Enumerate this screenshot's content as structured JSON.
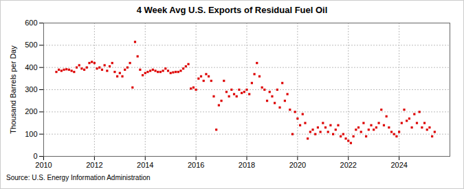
{
  "chart_data": {
    "type": "scatter",
    "title": "4 Week Avg U.S. Exports of Residual Fuel Oil",
    "y_label": "Thousand Barrels per Day",
    "caption": "Source: U.S. Energy Information Administration",
    "color": "#dd0000",
    "marker": "square",
    "grid": true,
    "xlim": [
      2010,
      2026
    ],
    "xticks": [
      2010,
      2012,
      2014,
      2016,
      2018,
      2020,
      2022,
      2024
    ],
    "ylim": [
      0,
      600
    ],
    "yticks": [
      0,
      100,
      200,
      300,
      400,
      500,
      600
    ],
    "x": [
      2010.5,
      2010.6,
      2010.7,
      2010.8,
      2010.9,
      2011.0,
      2011.1,
      2011.2,
      2011.3,
      2011.4,
      2011.5,
      2011.6,
      2011.7,
      2011.8,
      2011.9,
      2012.0,
      2012.1,
      2012.2,
      2012.3,
      2012.4,
      2012.5,
      2012.6,
      2012.7,
      2012.8,
      2012.9,
      2013.0,
      2013.1,
      2013.2,
      2013.3,
      2013.4,
      2013.5,
      2013.6,
      2013.7,
      2013.8,
      2013.9,
      2014.0,
      2014.1,
      2014.2,
      2014.3,
      2014.4,
      2014.5,
      2014.6,
      2014.7,
      2014.8,
      2014.9,
      2015.0,
      2015.1,
      2015.2,
      2015.3,
      2015.4,
      2015.5,
      2015.6,
      2015.7,
      2015.8,
      2015.9,
      2016.0,
      2016.1,
      2016.2,
      2016.3,
      2016.4,
      2016.5,
      2016.6,
      2016.7,
      2016.8,
      2016.9,
      2017.0,
      2017.1,
      2017.2,
      2017.3,
      2017.4,
      2017.5,
      2017.6,
      2017.7,
      2017.8,
      2017.9,
      2018.0,
      2018.1,
      2018.2,
      2018.3,
      2018.4,
      2018.5,
      2018.6,
      2018.7,
      2018.8,
      2018.9,
      2019.0,
      2019.1,
      2019.2,
      2019.3,
      2019.4,
      2019.5,
      2019.6,
      2019.7,
      2019.8,
      2019.9,
      2020.0,
      2020.1,
      2020.2,
      2020.3,
      2020.4,
      2020.5,
      2020.6,
      2020.7,
      2020.8,
      2020.9,
      2021.0,
      2021.1,
      2021.2,
      2021.3,
      2021.4,
      2021.5,
      2021.6,
      2021.7,
      2021.8,
      2021.9,
      2022.0,
      2022.1,
      2022.2,
      2022.3,
      2022.4,
      2022.5,
      2022.6,
      2022.7,
      2022.8,
      2022.9,
      2023.0,
      2023.1,
      2023.2,
      2023.3,
      2023.4,
      2023.5,
      2023.6,
      2023.7,
      2023.8,
      2023.9,
      2024.0,
      2024.1,
      2024.2,
      2024.3,
      2024.4,
      2024.5,
      2024.6,
      2024.7,
      2024.8,
      2024.9,
      2025.0,
      2025.1,
      2025.2,
      2025.3,
      2025.4
    ],
    "values": [
      380,
      390,
      385,
      390,
      392,
      390,
      385,
      380,
      400,
      410,
      395,
      390,
      400,
      420,
      425,
      420,
      395,
      400,
      390,
      410,
      385,
      405,
      420,
      380,
      360,
      375,
      360,
      390,
      400,
      420,
      310,
      515,
      450,
      390,
      365,
      375,
      380,
      385,
      390,
      385,
      380,
      380,
      385,
      395,
      385,
      375,
      378,
      380,
      380,
      385,
      395,
      405,
      415,
      305,
      310,
      300,
      350,
      360,
      340,
      370,
      360,
      340,
      270,
      120,
      230,
      250,
      340,
      290,
      270,
      300,
      280,
      270,
      300,
      285,
      290,
      300,
      280,
      330,
      370,
      420,
      360,
      310,
      300,
      250,
      290,
      270,
      240,
      300,
      220,
      330,
      250,
      280,
      210,
      100,
      200,
      170,
      140,
      190,
      150,
      80,
      110,
      120,
      100,
      130,
      110,
      150,
      130,
      110,
      140,
      100,
      120,
      140,
      90,
      100,
      80,
      70,
      60,
      90,
      120,
      130,
      110,
      150,
      90,
      120,
      140,
      120,
      130,
      150,
      210,
      140,
      180,
      130,
      110,
      100,
      90,
      110,
      150,
      210,
      160,
      170,
      130,
      190,
      150,
      200,
      130,
      150,
      120,
      130,
      90,
      110
    ]
  }
}
